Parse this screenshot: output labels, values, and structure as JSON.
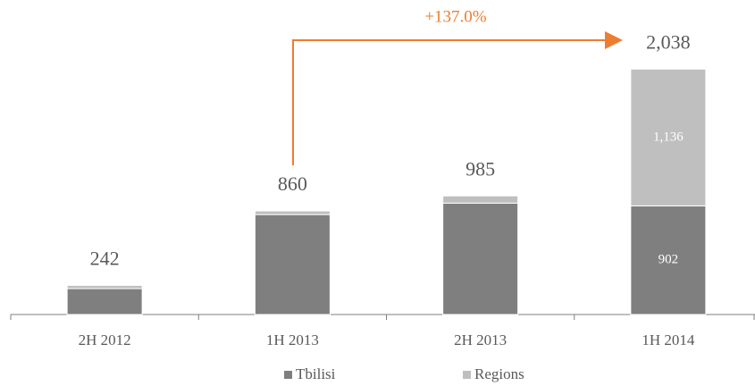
{
  "chart_data": {
    "type": "stacked-bar",
    "categories": [
      "2H 2012",
      "1H 2013",
      "2H 2013",
      "1H 2014"
    ],
    "series": [
      {
        "name": "Tbilisi",
        "color": "#7f7f7f",
        "values": [
          215,
          830,
          925,
          902
        ],
        "value_labels": [
          null,
          null,
          null,
          "902"
        ]
      },
      {
        "name": "Regions",
        "color": "#bfbfbf",
        "values": [
          27,
          30,
          60,
          1136
        ],
        "value_labels": [
          null,
          null,
          null,
          "1,136"
        ]
      }
    ],
    "totals": [
      242,
      860,
      985,
      2038
    ],
    "total_labels": [
      "242",
      "860",
      "985",
      "2,038"
    ],
    "annotation": "+137.0%",
    "annotation_color": "#ed7d31",
    "ylim": [
      0,
      2300
    ],
    "legend": "bottom"
  }
}
